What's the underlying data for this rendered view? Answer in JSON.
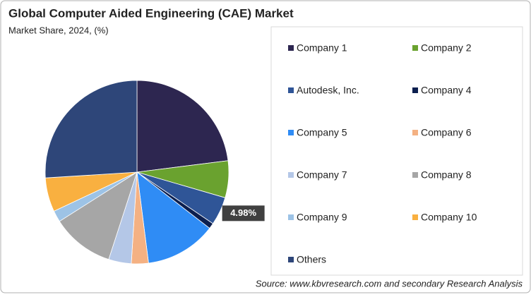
{
  "chart_data": {
    "type": "pie",
    "title": "Global Computer Aided Engineering (CAE) Market",
    "subtitle": "Market Share, 2024, (%)",
    "source": "Source: www.kbvresearch.com and secondary Research Analysis",
    "categories": [
      "Company 1",
      "Company 2",
      "Autodesk, Inc.",
      "Company 4",
      "Company 5",
      "Company 6",
      "Company 7",
      "Company 8",
      "Company 9",
      "Company 10",
      "Others"
    ],
    "values": [
      23,
      6.5,
      4.98,
      1,
      12.5,
      3,
      4,
      11,
      2,
      6,
      26
    ],
    "value_labels": [
      null,
      null,
      "4.98%",
      null,
      null,
      null,
      null,
      null,
      null,
      null,
      null
    ],
    "colors": [
      "#2d2650",
      "#6aa22f",
      "#2f5597",
      "#0c1f4f",
      "#2f8cf5",
      "#f4b183",
      "#b4c7e7",
      "#a6a6a6",
      "#9dc3e6",
      "#f9b040",
      "#2e4679"
    ],
    "legend": "right"
  }
}
